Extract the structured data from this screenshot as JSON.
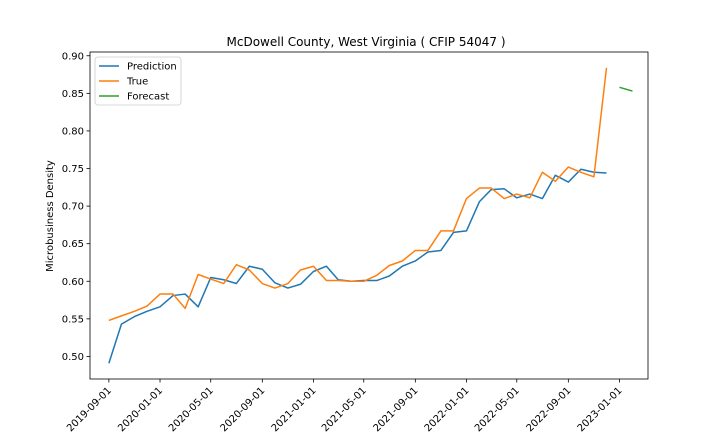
{
  "chart_data": {
    "type": "line",
    "title": "McDowell County, West Virginia ( CFIP 54047 )",
    "xlabel": "",
    "ylabel": "Microbusiness Density",
    "xlim": [
      "2019-07-18",
      "2023-03-10"
    ],
    "ylim": [
      0.47,
      0.905
    ],
    "x_ticks": [
      "2019-09-01",
      "2020-01-01",
      "2020-05-01",
      "2020-09-01",
      "2021-01-01",
      "2021-05-01",
      "2021-09-01",
      "2022-01-01",
      "2022-05-01",
      "2022-09-01",
      "2023-01-01"
    ],
    "y_ticks": [
      0.5,
      0.55,
      0.6,
      0.65,
      0.7,
      0.75,
      0.8,
      0.85,
      0.9
    ],
    "legend_position": "top-left",
    "grid": false,
    "series": [
      {
        "name": "Prediction",
        "color": "#1f77b4",
        "x": [
          "2019-09-01",
          "2019-10-01",
          "2019-11-01",
          "2019-12-01",
          "2020-01-01",
          "2020-02-01",
          "2020-03-01",
          "2020-04-01",
          "2020-05-01",
          "2020-06-01",
          "2020-07-01",
          "2020-08-01",
          "2020-09-01",
          "2020-10-01",
          "2020-11-01",
          "2020-12-01",
          "2021-01-01",
          "2021-02-01",
          "2021-03-01",
          "2021-04-01",
          "2021-05-01",
          "2021-06-01",
          "2021-07-01",
          "2021-08-01",
          "2021-09-01",
          "2021-10-01",
          "2021-11-01",
          "2021-12-01",
          "2022-01-01",
          "2022-02-01",
          "2022-03-01",
          "2022-04-01",
          "2022-05-01",
          "2022-06-01",
          "2022-07-01",
          "2022-08-01",
          "2022-09-01",
          "2022-10-01",
          "2022-11-01",
          "2022-12-01"
        ],
        "y": [
          0.491,
          0.543,
          0.553,
          0.56,
          0.566,
          0.581,
          0.583,
          0.566,
          0.605,
          0.602,
          0.597,
          0.62,
          0.616,
          0.598,
          0.591,
          0.596,
          0.613,
          0.62,
          0.602,
          0.6,
          0.601,
          0.601,
          0.607,
          0.62,
          0.627,
          0.639,
          0.641,
          0.665,
          0.667,
          0.706,
          0.722,
          0.723,
          0.711,
          0.716,
          0.71,
          0.741,
          0.732,
          0.749,
          0.745,
          0.744
        ]
      },
      {
        "name": "True",
        "color": "#ff7f0e",
        "x": [
          "2019-09-01",
          "2019-10-01",
          "2019-11-01",
          "2019-12-01",
          "2020-01-01",
          "2020-02-01",
          "2020-03-01",
          "2020-04-01",
          "2020-05-01",
          "2020-06-01",
          "2020-07-01",
          "2020-08-01",
          "2020-09-01",
          "2020-10-01",
          "2020-11-01",
          "2020-12-01",
          "2021-01-01",
          "2021-02-01",
          "2021-03-01",
          "2021-04-01",
          "2021-05-01",
          "2021-06-01",
          "2021-07-01",
          "2021-08-01",
          "2021-09-01",
          "2021-10-01",
          "2021-11-01",
          "2021-12-01",
          "2022-01-01",
          "2022-02-01",
          "2022-03-01",
          "2022-04-01",
          "2022-05-01",
          "2022-06-01",
          "2022-07-01",
          "2022-08-01",
          "2022-09-01",
          "2022-10-01",
          "2022-11-01",
          "2022-12-01"
        ],
        "y": [
          0.548,
          0.554,
          0.56,
          0.567,
          0.583,
          0.583,
          0.564,
          0.609,
          0.603,
          0.597,
          0.622,
          0.615,
          0.597,
          0.591,
          0.597,
          0.615,
          0.62,
          0.601,
          0.601,
          0.6,
          0.6,
          0.608,
          0.621,
          0.627,
          0.641,
          0.641,
          0.667,
          0.667,
          0.71,
          0.724,
          0.724,
          0.71,
          0.716,
          0.711,
          0.745,
          0.733,
          0.752,
          0.745,
          0.739,
          0.884
        ]
      },
      {
        "name": "Forecast",
        "color": "#2ca02c",
        "x": [
          "2023-01-01",
          "2023-02-01"
        ],
        "y": [
          0.858,
          0.853
        ]
      }
    ]
  }
}
